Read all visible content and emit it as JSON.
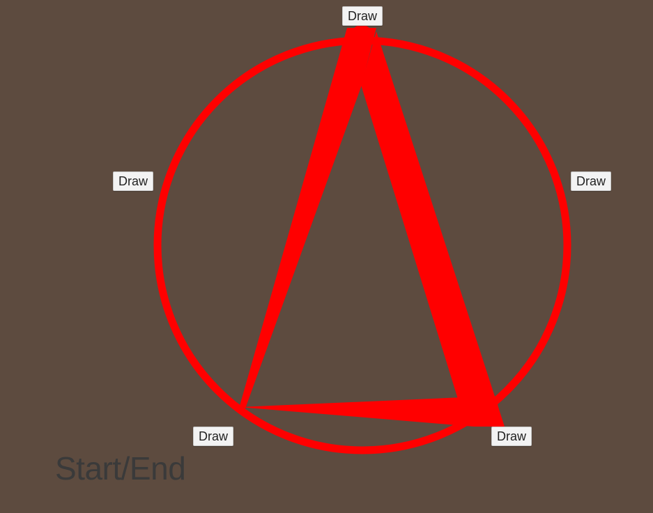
{
  "buttons": {
    "top": "Draw",
    "left": "Draw",
    "right": "Draw",
    "bottom_left": "Draw",
    "bottom_right": "Draw"
  },
  "status_label": "Start/End",
  "colors": {
    "background": "#5d4b3f",
    "stroke": "#ff0000",
    "button_bg": "#f3f3f3",
    "label_text": "#3a3a3a"
  }
}
